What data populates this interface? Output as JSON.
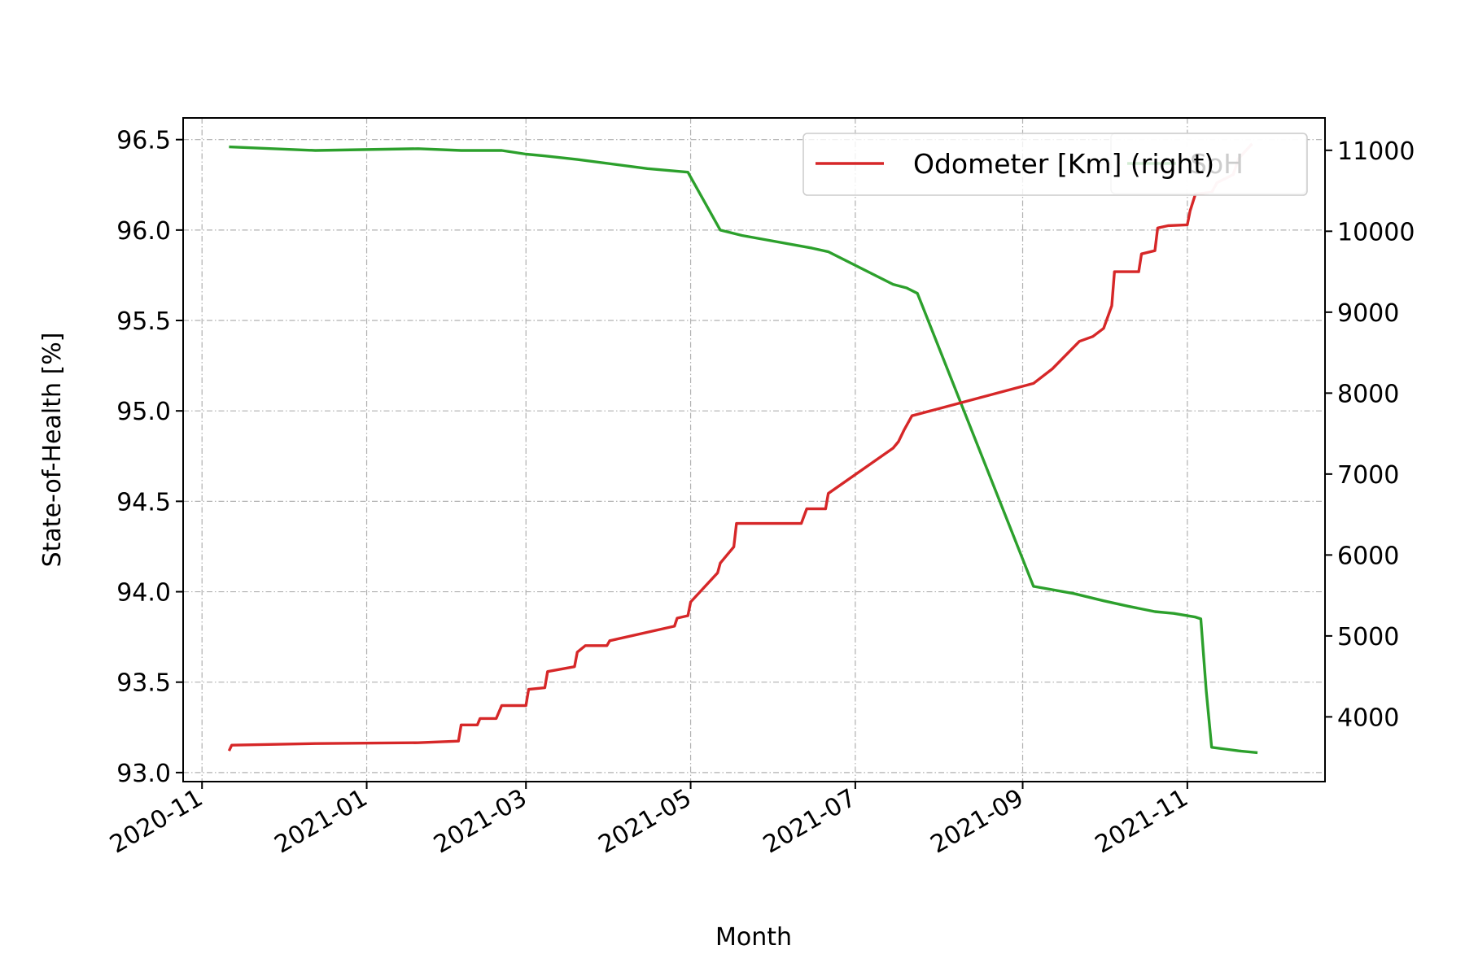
{
  "chart_data": {
    "type": "line",
    "xlabel": "Month",
    "ylabel_left": "State-of-Health [%]",
    "x_axis": {
      "type": "date",
      "range": [
        "2020-10-25",
        "2021-12-22"
      ],
      "ticks": [
        "2020-11-01",
        "2021-01-01",
        "2021-03-01",
        "2021-05-01",
        "2021-07-01",
        "2021-09-01",
        "2021-11-01"
      ],
      "tick_labels": [
        "2020-11",
        "2021-01",
        "2021-03",
        "2021-05",
        "2021-07",
        "2021-09",
        "2021-11"
      ]
    },
    "y_left": {
      "range": [
        92.95,
        96.62
      ],
      "ticks": [
        93.0,
        93.5,
        94.0,
        94.5,
        95.0,
        95.5,
        96.0,
        96.5
      ],
      "tick_labels": [
        "93.0",
        "93.5",
        "94.0",
        "94.5",
        "95.0",
        "95.5",
        "96.0",
        "96.5"
      ]
    },
    "y_right": {
      "range": [
        3200,
        11400
      ],
      "ticks": [
        4000,
        5000,
        6000,
        7000,
        8000,
        9000,
        10000,
        11000
      ],
      "tick_labels": [
        "4000",
        "5000",
        "6000",
        "7000",
        "8000",
        "9000",
        "10000",
        "11000"
      ]
    },
    "grid": true,
    "legend": {
      "placement": "upper right",
      "entries": [
        "SoH",
        "Odometer [Km] (right)"
      ]
    },
    "series": [
      {
        "name": "SoH",
        "axis": "left",
        "color": "#2ca02c",
        "points": [
          [
            "2020-11-11",
            96.46
          ],
          [
            "2020-12-13",
            96.44
          ],
          [
            "2021-01-20",
            96.45
          ],
          [
            "2021-02-05",
            96.44
          ],
          [
            "2021-02-20",
            96.44
          ],
          [
            "2021-03-01",
            96.42
          ],
          [
            "2021-03-08",
            96.41
          ],
          [
            "2021-03-20",
            96.39
          ],
          [
            "2021-04-15",
            96.34
          ],
          [
            "2021-04-30",
            96.32
          ],
          [
            "2021-05-12",
            96.0
          ],
          [
            "2021-05-20",
            95.97
          ],
          [
            "2021-06-15",
            95.9
          ],
          [
            "2021-06-21",
            95.88
          ],
          [
            "2021-07-15",
            95.7
          ],
          [
            "2021-07-20",
            95.68
          ],
          [
            "2021-07-24",
            95.65
          ],
          [
            "2021-09-05",
            94.03
          ],
          [
            "2021-09-20",
            93.99
          ],
          [
            "2021-10-01",
            93.95
          ],
          [
            "2021-10-10",
            93.92
          ],
          [
            "2021-10-20",
            93.89
          ],
          [
            "2021-10-27",
            93.88
          ],
          [
            "2021-11-04",
            93.86
          ],
          [
            "2021-11-06",
            93.85
          ],
          [
            "2021-11-08",
            93.45
          ],
          [
            "2021-11-10",
            93.14
          ],
          [
            "2021-11-15",
            93.13
          ],
          [
            "2021-11-20",
            93.12
          ],
          [
            "2021-11-27",
            93.11
          ]
        ]
      },
      {
        "name": "Odometer [Km] (right)",
        "axis": "right",
        "color": "#d62728",
        "points": [
          [
            "2020-11-11",
            3580
          ],
          [
            "2020-11-12",
            3650
          ],
          [
            "2020-12-13",
            3670
          ],
          [
            "2021-01-20",
            3680
          ],
          [
            "2021-02-04",
            3700
          ],
          [
            "2021-02-05",
            3900
          ],
          [
            "2021-02-11",
            3900
          ],
          [
            "2021-02-12",
            3980
          ],
          [
            "2021-02-18",
            3980
          ],
          [
            "2021-02-20",
            4140
          ],
          [
            "2021-03-01",
            4140
          ],
          [
            "2021-03-02",
            4340
          ],
          [
            "2021-03-08",
            4360
          ],
          [
            "2021-03-09",
            4560
          ],
          [
            "2021-03-19",
            4620
          ],
          [
            "2021-03-20",
            4800
          ],
          [
            "2021-03-23",
            4880
          ],
          [
            "2021-03-31",
            4880
          ],
          [
            "2021-04-01",
            4940
          ],
          [
            "2021-04-25",
            5120
          ],
          [
            "2021-04-26",
            5220
          ],
          [
            "2021-04-30",
            5250
          ],
          [
            "2021-05-01",
            5420
          ],
          [
            "2021-05-11",
            5780
          ],
          [
            "2021-05-12",
            5900
          ],
          [
            "2021-05-17",
            6100
          ],
          [
            "2021-05-18",
            6390
          ],
          [
            "2021-06-11",
            6390
          ],
          [
            "2021-06-13",
            6570
          ],
          [
            "2021-06-20",
            6570
          ],
          [
            "2021-06-21",
            6760
          ],
          [
            "2021-07-15",
            7320
          ],
          [
            "2021-07-17",
            7400
          ],
          [
            "2021-07-19",
            7540
          ],
          [
            "2021-07-22",
            7720
          ],
          [
            "2021-09-05",
            8120
          ],
          [
            "2021-09-12",
            8300
          ],
          [
            "2021-09-22",
            8640
          ],
          [
            "2021-09-27",
            8700
          ],
          [
            "2021-10-01",
            8800
          ],
          [
            "2021-10-04",
            9080
          ],
          [
            "2021-10-05",
            9500
          ],
          [
            "2021-10-14",
            9500
          ],
          [
            "2021-10-15",
            9720
          ],
          [
            "2021-10-20",
            9760
          ],
          [
            "2021-10-21",
            10040
          ],
          [
            "2021-10-25",
            10070
          ],
          [
            "2021-11-01",
            10080
          ],
          [
            "2021-11-02",
            10250
          ],
          [
            "2021-11-04",
            10460
          ],
          [
            "2021-11-10",
            10480
          ],
          [
            "2021-11-12",
            10600
          ],
          [
            "2021-11-18",
            10700
          ],
          [
            "2021-11-20",
            10900
          ],
          [
            "2021-11-25",
            11080
          ]
        ]
      }
    ]
  }
}
